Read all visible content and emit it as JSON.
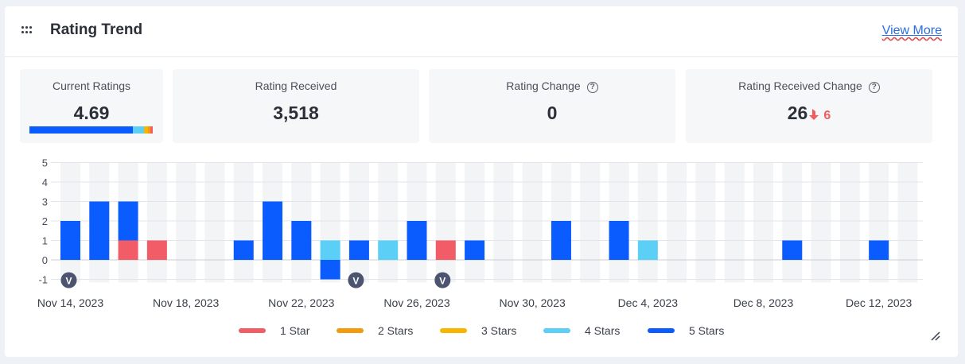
{
  "header": {
    "title": "Rating Trend",
    "view_more_label": "View More"
  },
  "stats": {
    "current_ratings": {
      "label": "Current Ratings",
      "value": "4.69"
    },
    "rating_received": {
      "label": "Rating Received",
      "value": "3,518"
    },
    "rating_change": {
      "label": "Rating Change",
      "value": "0"
    },
    "rating_received_change": {
      "label": "Rating Received Change",
      "value": "26",
      "delta": "6"
    }
  },
  "rating_distribution": [
    {
      "stars": 5,
      "fraction": 0.84,
      "color": "#0b5cff"
    },
    {
      "stars": 4,
      "fraction": 0.09,
      "color": "#5ccff7"
    },
    {
      "stars": 3,
      "fraction": 0.03,
      "color": "#f7b500"
    },
    {
      "stars": 2,
      "fraction": 0.02,
      "color": "#f59a0c"
    },
    {
      "stars": 1,
      "fraction": 0.02,
      "color": "#f25c66"
    }
  ],
  "icons": {
    "drag": "drag-handle-icon",
    "help": "question-circle-icon",
    "down_arrow": "arrow-down-icon",
    "resize": "resize-icon",
    "version_marker": "version-marker-icon"
  },
  "chart_data": {
    "type": "bar",
    "stacked": true,
    "ylim": [
      -1,
      5
    ],
    "yticks": [
      5,
      4,
      3,
      2,
      1,
      0,
      -1
    ],
    "dates": [
      "2023-11-14",
      "2023-11-15",
      "2023-11-16",
      "2023-11-17",
      "2023-11-18",
      "2023-11-19",
      "2023-11-20",
      "2023-11-21",
      "2023-11-22",
      "2023-11-23",
      "2023-11-24",
      "2023-11-25",
      "2023-11-26",
      "2023-11-27",
      "2023-11-28",
      "2023-11-29",
      "2023-11-30",
      "2023-12-01",
      "2023-12-02",
      "2023-12-03",
      "2023-12-04",
      "2023-12-05",
      "2023-12-06",
      "2023-12-07",
      "2023-12-08",
      "2023-12-09",
      "2023-12-10",
      "2023-12-11",
      "2023-12-12",
      "2023-12-13"
    ],
    "x_tick_labels": [
      "Nov 14, 2023",
      "Nov 18, 2023",
      "Nov 22, 2023",
      "Nov 26, 2023",
      "Nov 30, 2023",
      "Dec 4, 2023",
      "Dec 8, 2023",
      "Dec 12, 2023"
    ],
    "series": [
      {
        "name": "1 Star",
        "color": "#f25c66",
        "values": [
          0,
          0,
          1,
          1,
          0,
          0,
          0,
          0,
          0,
          0,
          0,
          0,
          0,
          1,
          0,
          0,
          0,
          0,
          0,
          0,
          0,
          0,
          0,
          0,
          0,
          0,
          0,
          0,
          0,
          0
        ]
      },
      {
        "name": "2 Stars",
        "color": "#f59a0c",
        "values": [
          0,
          0,
          0,
          0,
          0,
          0,
          0,
          0,
          0,
          0,
          0,
          0,
          0,
          0,
          0,
          0,
          0,
          0,
          0,
          0,
          0,
          0,
          0,
          0,
          0,
          0,
          0,
          0,
          0,
          0
        ]
      },
      {
        "name": "3 Stars",
        "color": "#f7b500",
        "values": [
          0,
          0,
          0,
          0,
          0,
          0,
          0,
          0,
          0,
          0,
          0,
          0,
          0,
          0,
          0,
          0,
          0,
          0,
          0,
          0,
          0,
          0,
          0,
          0,
          0,
          0,
          0,
          0,
          0,
          0
        ]
      },
      {
        "name": "4 Stars",
        "color": "#5ccff7",
        "values": [
          0,
          0,
          0,
          0,
          0,
          0,
          0,
          0,
          0,
          1,
          0,
          1,
          0,
          0,
          0,
          0,
          0,
          0,
          0,
          0,
          1,
          0,
          0,
          0,
          0,
          0,
          0,
          0,
          0,
          0
        ]
      },
      {
        "name": "5 Stars",
        "color": "#0b5cff",
        "values": [
          2,
          3,
          2,
          0,
          0,
          0,
          1,
          3,
          2,
          -1,
          1,
          0,
          2,
          0,
          1,
          0,
          0,
          2,
          0,
          2,
          0,
          0,
          0,
          0,
          0,
          1,
          0,
          0,
          1,
          0
        ]
      }
    ],
    "version_markers": [
      "2023-11-14",
      "2023-11-24",
      "2023-11-27"
    ],
    "legend": {
      "position": "bottom"
    },
    "grid": true
  }
}
